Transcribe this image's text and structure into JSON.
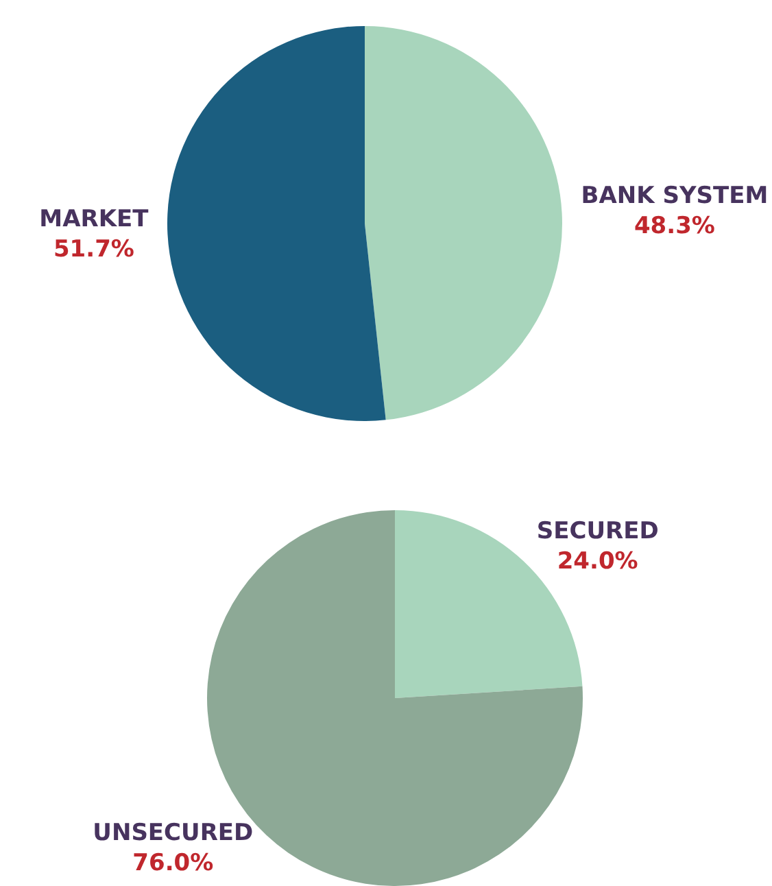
{
  "chart_data": [
    {
      "type": "pie",
      "categories": [
        "BANK SYSTEM",
        "MARKET"
      ],
      "values": [
        48.3,
        51.7
      ],
      "colors": [
        "#a8d5bc",
        "#1b5e80"
      ],
      "value_labels": [
        "48.3%",
        "51.7%"
      ],
      "legend": false
    },
    {
      "type": "pie",
      "categories": [
        "SECURED",
        "UNSECURED"
      ],
      "values": [
        24.0,
        76.0
      ],
      "colors": [
        "#a8d5bc",
        "#8da996"
      ],
      "value_labels": [
        "24.0%",
        "76.0%"
      ],
      "legend": false
    }
  ]
}
